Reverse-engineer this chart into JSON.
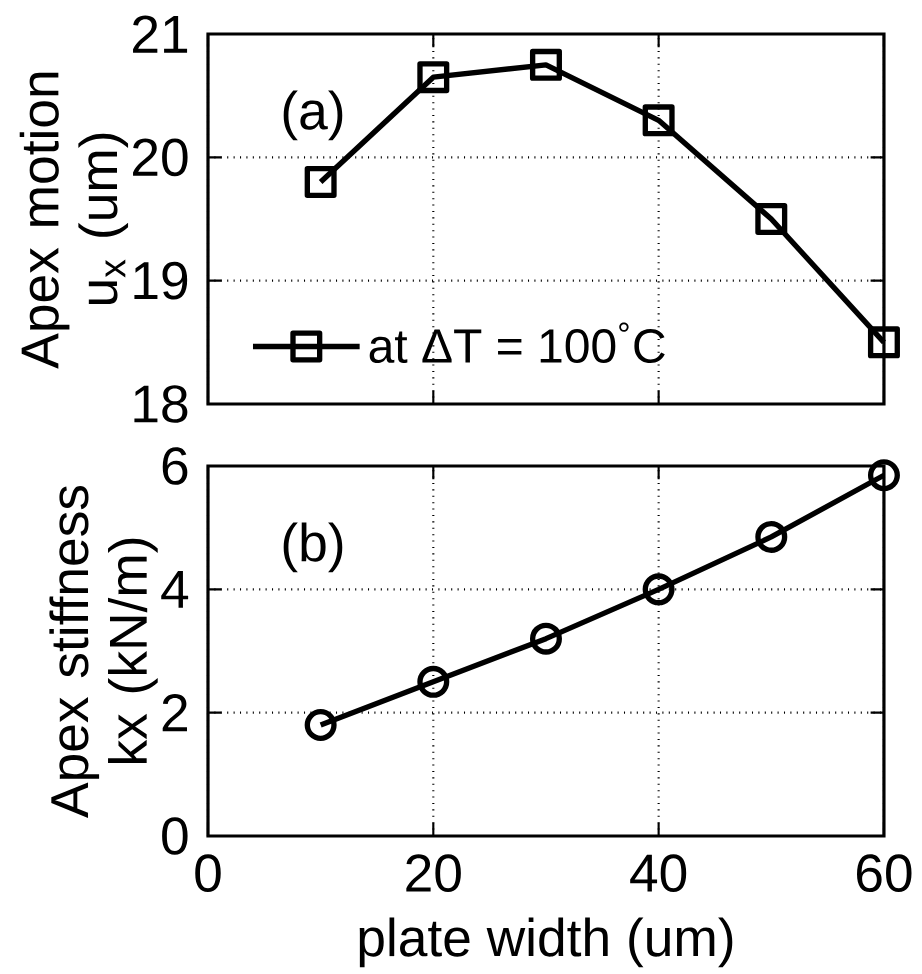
{
  "chart_data": [
    {
      "type": "line",
      "ylabel": "Apex motion u$_{x}$ (um)",
      "annotations": [
        "(a)"
      ],
      "x": [
        10,
        20,
        30,
        40,
        50,
        60
      ],
      "series": [
        {
          "name": "at ΔT = 100$^{°}$C",
          "color": "#000000",
          "values": [
            19.8,
            20.65,
            20.75,
            20.3,
            19.5,
            18.5
          ]
        }
      ],
      "xlim": [
        0,
        60
      ],
      "xticks": [
        0,
        20,
        40,
        60
      ],
      "ylim": [
        18,
        21
      ],
      "yticks": [
        18,
        19,
        20,
        21
      ],
      "tick_labels": "y",
      "grid": true,
      "legend": "bottom left",
      "marker": "square",
      "line_style": "solid"
    },
    {
      "type": "line",
      "xlabel": "plate width (um)",
      "ylabel": "Apex stiffness kx (kN/m)",
      "annotations": [
        "(b)"
      ],
      "x": [
        10,
        20,
        30,
        40,
        50,
        60
      ],
      "series": [
        {
          "color": "#000000",
          "values": [
            1.8,
            2.5,
            3.2,
            4.0,
            4.85,
            5.85
          ]
        }
      ],
      "xlim": [
        0,
        60
      ],
      "xticks": [
        0,
        20,
        40,
        60
      ],
      "ylim": [
        0,
        6
      ],
      "yticks": [
        0,
        2,
        4,
        6
      ],
      "grid": true,
      "marker": "circle",
      "line_style": "solid"
    }
  ]
}
